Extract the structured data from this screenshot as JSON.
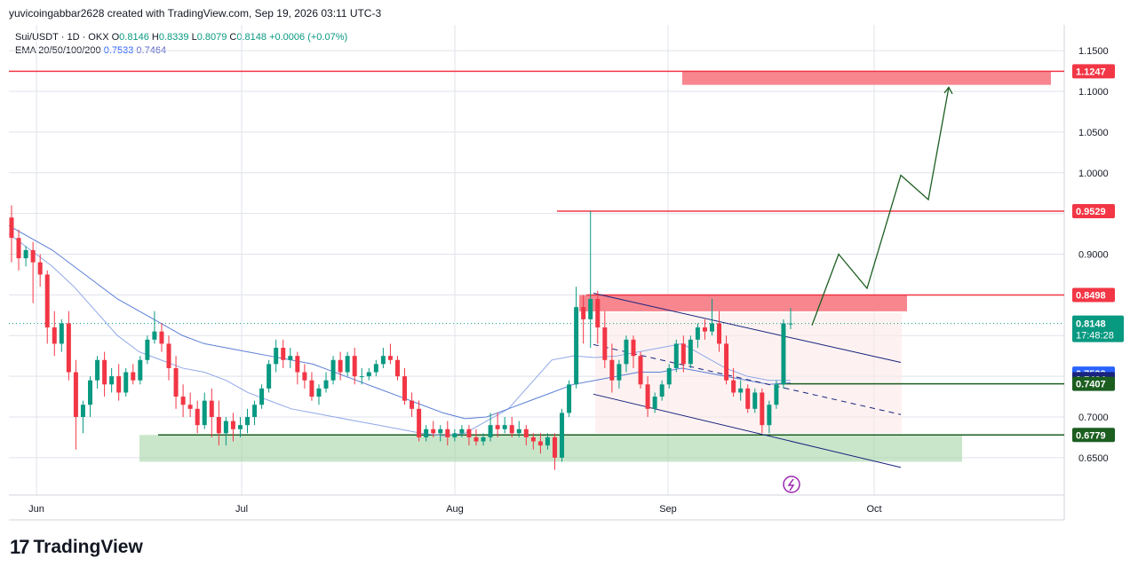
{
  "header": {
    "attribution": "yuvicoingabbar2628 created with TradingView.com, Sep 19, 2026 03:11 UTC-3"
  },
  "legend": {
    "symbol": "Sui/USDT · 1D · OKX",
    "open_label": "O",
    "open": "0.8146",
    "high_label": "H",
    "high": "0.8339",
    "low_label": "L",
    "low": "0.8079",
    "close_label": "C",
    "close": "0.8148",
    "change": "+0.0006 (+0.07%)",
    "ema_title": "EMA 20/50/100/200",
    "ema1": "0.7533",
    "ema2": "0.7464"
  },
  "brand": {
    "name": "TradingView",
    "logo_icon": "tradingview-logo-icon"
  },
  "colors": {
    "up": "#089981",
    "down": "#f23645",
    "grid": "#e0e3eb",
    "resistance": "#f23645",
    "support": "#1b5e20",
    "channel": "#1a237e",
    "ema": "#5b7fd6",
    "support_zone": "#a5d6a7",
    "resistance_zone": "#f7868f"
  },
  "chart_data": {
    "type": "candlestick",
    "pair": "Sui/USDT",
    "timeframe": "1D",
    "exchange": "OKX",
    "y_axis": {
      "ticks": [
        "1.1500",
        "1.1000",
        "1.0500",
        "1.0000",
        "0.9000",
        "0.7000",
        "0.6500"
      ],
      "ylim": [
        0.63,
        1.16
      ]
    },
    "x_axis": {
      "labels": [
        "Jun",
        "Jul",
        "Aug",
        "Sep",
        "Oct"
      ]
    },
    "price_levels": [
      {
        "label": "1.1247",
        "value": 1.1247,
        "kind": "resistance"
      },
      {
        "label": "0.9529",
        "value": 0.9529,
        "kind": "resistance"
      },
      {
        "label": "0.8498",
        "value": 0.8498,
        "kind": "resistance"
      },
      {
        "label": "0.7533",
        "value": 0.7533,
        "kind": "ema"
      },
      {
        "label": "0.7464",
        "value": 0.7464,
        "kind": "ema"
      },
      {
        "label": "0.7407",
        "value": 0.7407,
        "kind": "support"
      },
      {
        "label": "0.6779",
        "value": 0.6779,
        "kind": "support"
      }
    ],
    "current_price": {
      "label": "0.8148",
      "countdown": "17:48:28"
    },
    "candles": [
      {
        "o": 0.945,
        "h": 0.96,
        "c": 0.92,
        "l": 0.89
      },
      {
        "o": 0.92,
        "h": 0.93,
        "c": 0.895,
        "l": 0.88
      },
      {
        "o": 0.895,
        "h": 0.91,
        "c": 0.905,
        "l": 0.885
      },
      {
        "o": 0.905,
        "h": 0.915,
        "c": 0.89,
        "l": 0.84
      },
      {
        "o": 0.89,
        "h": 0.9,
        "c": 0.875,
        "l": 0.86
      },
      {
        "o": 0.875,
        "h": 0.88,
        "c": 0.81,
        "l": 0.79
      },
      {
        "o": 0.81,
        "h": 0.83,
        "c": 0.79,
        "l": 0.775
      },
      {
        "o": 0.79,
        "h": 0.82,
        "c": 0.815,
        "l": 0.78
      },
      {
        "o": 0.815,
        "h": 0.83,
        "c": 0.755,
        "l": 0.745
      },
      {
        "o": 0.755,
        "h": 0.77,
        "c": 0.7,
        "l": 0.66
      },
      {
        "o": 0.7,
        "h": 0.72,
        "c": 0.715,
        "l": 0.68
      },
      {
        "o": 0.715,
        "h": 0.75,
        "c": 0.745,
        "l": 0.7
      },
      {
        "o": 0.745,
        "h": 0.775,
        "c": 0.77,
        "l": 0.735
      },
      {
        "o": 0.77,
        "h": 0.78,
        "c": 0.74,
        "l": 0.725
      },
      {
        "o": 0.74,
        "h": 0.76,
        "c": 0.75,
        "l": 0.73
      },
      {
        "o": 0.75,
        "h": 0.765,
        "c": 0.73,
        "l": 0.72
      },
      {
        "o": 0.73,
        "h": 0.76,
        "c": 0.755,
        "l": 0.725
      },
      {
        "o": 0.755,
        "h": 0.765,
        "c": 0.745,
        "l": 0.74
      },
      {
        "o": 0.745,
        "h": 0.775,
        "c": 0.77,
        "l": 0.74
      },
      {
        "o": 0.77,
        "h": 0.8,
        "c": 0.795,
        "l": 0.765
      },
      {
        "o": 0.795,
        "h": 0.83,
        "c": 0.805,
        "l": 0.79
      },
      {
        "o": 0.805,
        "h": 0.815,
        "c": 0.79,
        "l": 0.78
      },
      {
        "o": 0.79,
        "h": 0.8,
        "c": 0.76,
        "l": 0.745
      },
      {
        "o": 0.76,
        "h": 0.775,
        "c": 0.725,
        "l": 0.71
      },
      {
        "o": 0.725,
        "h": 0.74,
        "c": 0.715,
        "l": 0.7
      },
      {
        "o": 0.715,
        "h": 0.73,
        "c": 0.71,
        "l": 0.7
      },
      {
        "o": 0.71,
        "h": 0.72,
        "c": 0.69,
        "l": 0.68
      },
      {
        "o": 0.69,
        "h": 0.73,
        "c": 0.72,
        "l": 0.685
      },
      {
        "o": 0.72,
        "h": 0.735,
        "c": 0.7,
        "l": 0.675
      },
      {
        "o": 0.7,
        "h": 0.72,
        "c": 0.68,
        "l": 0.665
      },
      {
        "o": 0.68,
        "h": 0.7,
        "c": 0.695,
        "l": 0.665
      },
      {
        "o": 0.695,
        "h": 0.705,
        "c": 0.685,
        "l": 0.67
      },
      {
        "o": 0.685,
        "h": 0.7,
        "c": 0.69,
        "l": 0.675
      },
      {
        "o": 0.69,
        "h": 0.71,
        "c": 0.7,
        "l": 0.68
      },
      {
        "o": 0.7,
        "h": 0.72,
        "c": 0.715,
        "l": 0.69
      },
      {
        "o": 0.715,
        "h": 0.74,
        "c": 0.735,
        "l": 0.71
      },
      {
        "o": 0.735,
        "h": 0.77,
        "c": 0.765,
        "l": 0.73
      },
      {
        "o": 0.765,
        "h": 0.795,
        "c": 0.785,
        "l": 0.755
      },
      {
        "o": 0.785,
        "h": 0.795,
        "c": 0.77,
        "l": 0.76
      },
      {
        "o": 0.77,
        "h": 0.785,
        "c": 0.775,
        "l": 0.76
      },
      {
        "o": 0.775,
        "h": 0.78,
        "c": 0.755,
        "l": 0.74
      },
      {
        "o": 0.755,
        "h": 0.765,
        "c": 0.745,
        "l": 0.735
      },
      {
        "o": 0.745,
        "h": 0.755,
        "c": 0.725,
        "l": 0.72
      },
      {
        "o": 0.725,
        "h": 0.74,
        "c": 0.735,
        "l": 0.715
      },
      {
        "o": 0.735,
        "h": 0.755,
        "c": 0.745,
        "l": 0.73
      },
      {
        "o": 0.745,
        "h": 0.775,
        "c": 0.77,
        "l": 0.74
      },
      {
        "o": 0.77,
        "h": 0.78,
        "c": 0.755,
        "l": 0.745
      },
      {
        "o": 0.755,
        "h": 0.78,
        "c": 0.775,
        "l": 0.75
      },
      {
        "o": 0.775,
        "h": 0.785,
        "c": 0.75,
        "l": 0.74
      },
      {
        "o": 0.75,
        "h": 0.76,
        "c": 0.75,
        "l": 0.74
      },
      {
        "o": 0.75,
        "h": 0.76,
        "c": 0.755,
        "l": 0.745
      },
      {
        "o": 0.755,
        "h": 0.77,
        "c": 0.765,
        "l": 0.75
      },
      {
        "o": 0.765,
        "h": 0.785,
        "c": 0.775,
        "l": 0.76
      },
      {
        "o": 0.775,
        "h": 0.79,
        "c": 0.77,
        "l": 0.765
      },
      {
        "o": 0.77,
        "h": 0.775,
        "c": 0.75,
        "l": 0.745
      },
      {
        "o": 0.75,
        "h": 0.76,
        "c": 0.72,
        "l": 0.715
      },
      {
        "o": 0.72,
        "h": 0.73,
        "c": 0.71,
        "l": 0.7
      },
      {
        "o": 0.71,
        "h": 0.72,
        "c": 0.675,
        "l": 0.67
      },
      {
        "o": 0.675,
        "h": 0.69,
        "c": 0.685,
        "l": 0.67
      },
      {
        "o": 0.685,
        "h": 0.695,
        "c": 0.68,
        "l": 0.675
      },
      {
        "o": 0.68,
        "h": 0.69,
        "c": 0.685,
        "l": 0.67
      },
      {
        "o": 0.685,
        "h": 0.695,
        "c": 0.675,
        "l": 0.665
      },
      {
        "o": 0.675,
        "h": 0.685,
        "c": 0.68,
        "l": 0.67
      },
      {
        "o": 0.68,
        "h": 0.69,
        "c": 0.685,
        "l": 0.675
      },
      {
        "o": 0.685,
        "h": 0.69,
        "c": 0.675,
        "l": 0.665
      },
      {
        "o": 0.675,
        "h": 0.685,
        "c": 0.67,
        "l": 0.665
      },
      {
        "o": 0.67,
        "h": 0.68,
        "c": 0.675,
        "l": 0.665
      },
      {
        "o": 0.675,
        "h": 0.705,
        "c": 0.69,
        "l": 0.67
      },
      {
        "o": 0.69,
        "h": 0.705,
        "c": 0.685,
        "l": 0.675
      },
      {
        "o": 0.685,
        "h": 0.7,
        "c": 0.69,
        "l": 0.68
      },
      {
        "o": 0.69,
        "h": 0.7,
        "c": 0.68,
        "l": 0.675
      },
      {
        "o": 0.68,
        "h": 0.695,
        "c": 0.685,
        "l": 0.675
      },
      {
        "o": 0.685,
        "h": 0.69,
        "c": 0.675,
        "l": 0.665
      },
      {
        "o": 0.675,
        "h": 0.68,
        "c": 0.67,
        "l": 0.66
      },
      {
        "o": 0.67,
        "h": 0.68,
        "c": 0.665,
        "l": 0.655
      },
      {
        "o": 0.665,
        "h": 0.68,
        "c": 0.675,
        "l": 0.66
      },
      {
        "o": 0.675,
        "h": 0.68,
        "c": 0.65,
        "l": 0.635
      },
      {
        "o": 0.65,
        "h": 0.71,
        "c": 0.705,
        "l": 0.645
      },
      {
        "o": 0.705,
        "h": 0.745,
        "c": 0.74,
        "l": 0.7
      },
      {
        "o": 0.74,
        "h": 0.86,
        "c": 0.835,
        "l": 0.735
      },
      {
        "o": 0.835,
        "h": 0.85,
        "c": 0.82,
        "l": 0.79
      },
      {
        "o": 0.82,
        "h": 0.953,
        "c": 0.845,
        "l": 0.785
      },
      {
        "o": 0.845,
        "h": 0.855,
        "c": 0.81,
        "l": 0.79
      },
      {
        "o": 0.81,
        "h": 0.83,
        "c": 0.77,
        "l": 0.76
      },
      {
        "o": 0.77,
        "h": 0.79,
        "c": 0.745,
        "l": 0.73
      },
      {
        "o": 0.745,
        "h": 0.77,
        "c": 0.765,
        "l": 0.735
      },
      {
        "o": 0.765,
        "h": 0.8,
        "c": 0.795,
        "l": 0.755
      },
      {
        "o": 0.795,
        "h": 0.8,
        "c": 0.775,
        "l": 0.76
      },
      {
        "o": 0.775,
        "h": 0.78,
        "c": 0.74,
        "l": 0.735
      },
      {
        "o": 0.74,
        "h": 0.75,
        "c": 0.71,
        "l": 0.7
      },
      {
        "o": 0.71,
        "h": 0.73,
        "c": 0.725,
        "l": 0.705
      },
      {
        "o": 0.725,
        "h": 0.745,
        "c": 0.74,
        "l": 0.72
      },
      {
        "o": 0.74,
        "h": 0.765,
        "c": 0.76,
        "l": 0.735
      },
      {
        "o": 0.76,
        "h": 0.795,
        "c": 0.79,
        "l": 0.755
      },
      {
        "o": 0.79,
        "h": 0.8,
        "c": 0.765,
        "l": 0.755
      },
      {
        "o": 0.765,
        "h": 0.8,
        "c": 0.795,
        "l": 0.76
      },
      {
        "o": 0.795,
        "h": 0.815,
        "c": 0.81,
        "l": 0.785
      },
      {
        "o": 0.81,
        "h": 0.82,
        "c": 0.805,
        "l": 0.795
      },
      {
        "o": 0.805,
        "h": 0.845,
        "c": 0.815,
        "l": 0.8
      },
      {
        "o": 0.815,
        "h": 0.83,
        "c": 0.79,
        "l": 0.78
      },
      {
        "o": 0.79,
        "h": 0.8,
        "c": 0.745,
        "l": 0.74
      },
      {
        "o": 0.745,
        "h": 0.76,
        "c": 0.73,
        "l": 0.725
      },
      {
        "o": 0.73,
        "h": 0.745,
        "c": 0.735,
        "l": 0.72
      },
      {
        "o": 0.735,
        "h": 0.74,
        "c": 0.71,
        "l": 0.705
      },
      {
        "o": 0.71,
        "h": 0.735,
        "c": 0.73,
        "l": 0.705
      },
      {
        "o": 0.73,
        "h": 0.735,
        "c": 0.69,
        "l": 0.68
      },
      {
        "o": 0.69,
        "h": 0.72,
        "c": 0.715,
        "l": 0.68
      },
      {
        "o": 0.715,
        "h": 0.745,
        "c": 0.74,
        "l": 0.71
      },
      {
        "o": 0.74,
        "h": 0.82,
        "c": 0.815,
        "l": 0.735
      },
      {
        "o": 0.8146,
        "h": 0.8339,
        "c": 0.8148,
        "l": 0.8079
      }
    ],
    "ema_series": [
      {
        "name": "EMA 20",
        "values": [
          0.925,
          0.905,
          0.885,
          0.86,
          0.83,
          0.8,
          0.78,
          0.77,
          0.76,
          0.755,
          0.745,
          0.73,
          0.72,
          0.71,
          0.705,
          0.7,
          0.695,
          0.69,
          0.685,
          0.68,
          0.677,
          0.68,
          0.695,
          0.71,
          0.74,
          0.77,
          0.775,
          0.773,
          0.775,
          0.78,
          0.785,
          0.79,
          0.775,
          0.76,
          0.75,
          0.745,
          0.745
        ]
      },
      {
        "name": "EMA 50",
        "values": [
          0.935,
          0.92,
          0.905,
          0.885,
          0.865,
          0.845,
          0.83,
          0.815,
          0.8,
          0.79,
          0.785,
          0.78,
          0.775,
          0.77,
          0.765,
          0.755,
          0.745,
          0.735,
          0.725,
          0.715,
          0.705,
          0.698,
          0.7,
          0.71,
          0.72,
          0.73,
          0.74,
          0.745,
          0.75,
          0.755,
          0.755,
          0.76,
          0.755,
          0.75,
          0.745,
          0.74,
          0.742
        ]
      }
    ],
    "annotations": {
      "channel": "descending channel",
      "projection": "zigzag path to 1.1247",
      "icon": "lightning-icon"
    }
  }
}
